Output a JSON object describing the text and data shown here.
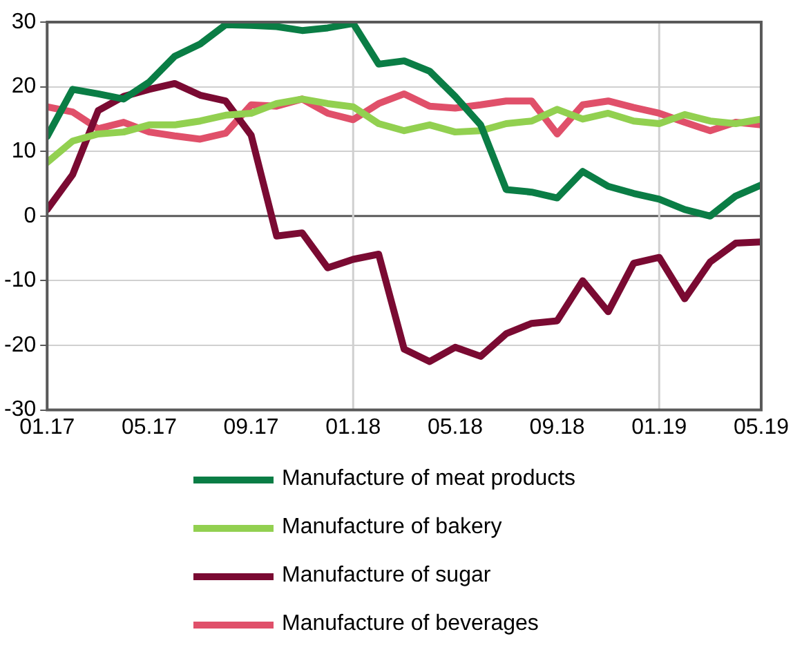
{
  "chart_data": {
    "type": "line",
    "x": [
      "2017-01",
      "2017-02",
      "2017-03",
      "2017-04",
      "2017-05",
      "2017-06",
      "2017-07",
      "2017-08",
      "2017-09",
      "2017-10",
      "2017-11",
      "2017-12",
      "2018-01",
      "2018-02",
      "2018-03",
      "2018-04",
      "2018-05",
      "2018-06",
      "2018-07",
      "2018-08",
      "2018-09",
      "2018-10",
      "2018-11",
      "2018-12",
      "2019-01",
      "2019-02",
      "2019-03",
      "2019-04",
      "2019-05"
    ],
    "series": [
      {
        "name": "Manufacture of meat products",
        "color": "#0a7d45",
        "values": [
          12.3,
          19.6,
          18.9,
          18.1,
          20.7,
          24.7,
          26.6,
          29.6,
          29.5,
          29.3,
          28.7,
          29.1,
          29.8,
          23.5,
          24.0,
          22.4,
          18.5,
          14.1,
          4.1,
          3.7,
          2.8,
          6.9,
          4.6,
          3.5,
          2.6,
          1.0,
          0,
          3.1,
          4.8
        ]
      },
      {
        "name": "Manufacture of bakery",
        "color": "#92d050",
        "values": [
          8.3,
          11.6,
          12.7,
          13.0,
          14.1,
          14.1,
          14.7,
          15.6,
          15.9,
          17.4,
          18.1,
          17.4,
          16.9,
          14.3,
          13.2,
          14.1,
          13.0,
          13.2,
          14.3,
          14.7,
          16.5,
          15.0,
          15.9,
          14.7,
          14.3,
          15.7,
          14.7,
          14.3,
          15.0
        ]
      },
      {
        "name": "Manufacture of sugar",
        "color": "#7a0a32",
        "values": [
          1.0,
          6.4,
          16.3,
          18.5,
          19.6,
          20.5,
          18.7,
          17.8,
          12.5,
          -3.1,
          -2.6,
          -8.0,
          -6.7,
          -5.9,
          -20.6,
          -22.5,
          -20.3,
          -21.7,
          -18.2,
          -16.6,
          -16.2,
          -10.0,
          -14.8,
          -7.3,
          -6.4,
          -12.8,
          -7.1,
          -4.2,
          -4.0
        ]
      },
      {
        "name": "Manufacture of beverages",
        "color": "#e0506a",
        "values": [
          16.9,
          16.1,
          13.5,
          14.5,
          13.0,
          12.4,
          11.9,
          12.8,
          17.2,
          17.0,
          18.1,
          15.9,
          14.9,
          17.4,
          18.9,
          17.0,
          16.7,
          17.2,
          17.8,
          17.8,
          12.7,
          17.2,
          17.8,
          16.8,
          15.9,
          14.5,
          13.2,
          14.5,
          14.1
        ]
      }
    ],
    "xlim": [
      "2017-01",
      "2019-05"
    ],
    "xticks": [
      {
        "value": "2017-01",
        "label": "01.17"
      },
      {
        "value": "2017-05",
        "label": "05.17"
      },
      {
        "value": "2017-09",
        "label": "09.17"
      },
      {
        "value": "2018-01",
        "label": "01.18"
      },
      {
        "value": "2018-05",
        "label": "05.18"
      },
      {
        "value": "2018-09",
        "label": "09.18"
      },
      {
        "value": "2019-01",
        "label": "01.19"
      },
      {
        "value": "2019-05",
        "label": "05.19"
      }
    ],
    "ylim": [
      -30,
      30
    ],
    "yticks": [
      -30,
      -20,
      -10,
      0,
      10,
      20,
      30
    ],
    "grid": "y",
    "legend": "bottom",
    "marker": "none",
    "line_style": "solid",
    "ref_lines": [
      {
        "axis": "y",
        "value": 0,
        "color": "#595959"
      },
      {
        "axis": "x",
        "value": "2018-01",
        "color": "#d0d0d0"
      },
      {
        "axis": "x",
        "value": "2019-01",
        "color": "#d0d0d0"
      }
    ]
  }
}
